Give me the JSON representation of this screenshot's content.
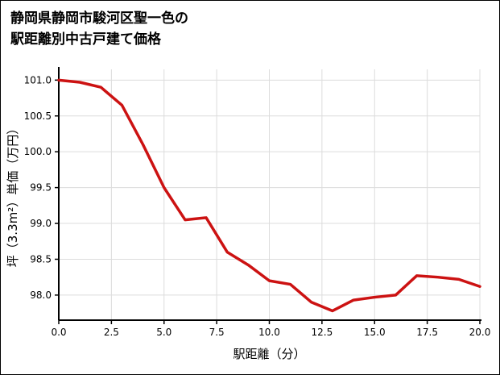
{
  "title": {
    "line1": "静岡県静岡市駿河区聖一色の",
    "line2": "駅距離別中古戸建て価格"
  },
  "chart_data": {
    "type": "line",
    "title": "静岡県静岡市駿河区聖一色の駅距離別中古戸建て価格",
    "xlabel": "駅距離（分）",
    "ylabel": "坪（3.3m²）単価（万円）",
    "x": [
      0,
      1,
      2,
      3,
      4,
      5,
      6,
      7,
      8,
      9,
      10,
      11,
      12,
      13,
      14,
      15,
      16,
      17,
      18,
      19,
      20
    ],
    "values": [
      101.0,
      100.97,
      100.9,
      100.65,
      100.1,
      99.5,
      99.05,
      99.08,
      98.6,
      98.42,
      98.2,
      98.15,
      97.9,
      97.78,
      97.93,
      97.97,
      98.0,
      98.27,
      98.25,
      98.22,
      98.12
    ],
    "xlim": [
      0,
      20
    ],
    "ylim": [
      97.65,
      101.15
    ],
    "x_ticks": [
      0.0,
      2.5,
      5.0,
      7.5,
      10.0,
      12.5,
      15.0,
      17.5,
      20.0
    ],
    "y_ticks": [
      98.0,
      98.5,
      99.0,
      99.5,
      100.0,
      100.5,
      101.0
    ],
    "line_color": "#cc1212",
    "grid_color": "#dcdcdc",
    "axis_color": "#000000",
    "grid": true,
    "legend_position": "none"
  }
}
